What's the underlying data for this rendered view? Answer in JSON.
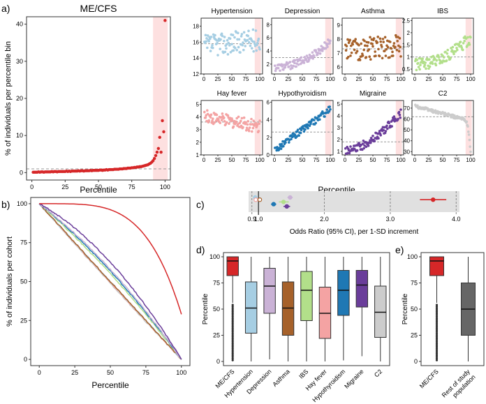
{
  "panel_labels": {
    "a": "a)",
    "b": "b)",
    "c": "c)",
    "d": "d)",
    "e": "e)"
  },
  "colors": {
    "mecfs": "#d62728",
    "hypertension": "#a6cee3",
    "depression": "#cab2d6",
    "asthma": "#a6612a",
    "ibs": "#b2df8a",
    "hayfever": "#f4a3a3",
    "hypothyroidism": "#1f78b4",
    "migraine": "#6a3d9a",
    "c2": "#cccccc",
    "rest": "#666666",
    "highlight": "#fde0e0",
    "band": "#e0e0e0"
  },
  "chart_data": [
    {
      "id": "a-main",
      "type": "scatter",
      "title": "ME/CFS",
      "xlabel": "Percentile",
      "ylabel": "% of individuals per percentile bin",
      "xlim": [
        0,
        100
      ],
      "ylim": [
        -2,
        42
      ],
      "xticks": [
        0,
        25,
        50,
        75,
        100
      ],
      "yticks": [
        0,
        10,
        20,
        30,
        40
      ],
      "baseline": 1,
      "highlight_range": [
        91,
        100
      ],
      "series": [
        {
          "name": "ME/CFS",
          "color_key": "mecfs",
          "x": [
            1,
            2,
            3,
            4,
            5,
            6,
            7,
            8,
            9,
            10,
            11,
            12,
            13,
            14,
            15,
            16,
            17,
            18,
            19,
            20,
            21,
            22,
            23,
            24,
            25,
            26,
            27,
            28,
            29,
            30,
            31,
            32,
            33,
            34,
            35,
            36,
            37,
            38,
            39,
            40,
            41,
            42,
            43,
            44,
            45,
            46,
            47,
            48,
            49,
            50,
            51,
            52,
            53,
            54,
            55,
            56,
            57,
            58,
            59,
            60,
            61,
            62,
            63,
            64,
            65,
            66,
            67,
            68,
            69,
            70,
            71,
            72,
            73,
            74,
            75,
            76,
            77,
            78,
            79,
            80,
            81,
            82,
            83,
            84,
            85,
            86,
            87,
            88,
            89,
            90,
            91,
            92,
            93,
            94,
            95,
            96,
            97,
            98,
            99,
            100
          ],
          "y": [
            0.1,
            0.1,
            0.1,
            0.1,
            0.2,
            0.1,
            0.2,
            0.2,
            0.1,
            0.2,
            0.2,
            0.2,
            0.2,
            0.2,
            0.3,
            0.2,
            0.3,
            0.3,
            0.2,
            0.3,
            0.3,
            0.3,
            0.3,
            0.3,
            0.3,
            0.4,
            0.3,
            0.4,
            0.3,
            0.4,
            0.4,
            0.4,
            0.4,
            0.4,
            0.5,
            0.4,
            0.5,
            0.5,
            0.4,
            0.5,
            0.5,
            0.5,
            0.5,
            0.6,
            0.5,
            0.6,
            0.6,
            0.6,
            0.6,
            0.6,
            0.7,
            0.7,
            0.6,
            0.7,
            0.7,
            0.8,
            0.7,
            0.8,
            0.8,
            0.8,
            0.8,
            0.9,
            0.9,
            0.9,
            0.9,
            1.0,
            1.0,
            1.0,
            1.1,
            1.1,
            1.1,
            1.2,
            1.2,
            1.2,
            1.3,
            1.3,
            1.4,
            1.4,
            1.5,
            1.5,
            1.6,
            1.6,
            1.7,
            1.8,
            1.9,
            2.0,
            2.1,
            2.3,
            2.5,
            2.8,
            3.2,
            3.8,
            4.6,
            5.5,
            6.5,
            9.5,
            5.5,
            14.0,
            11.0,
            41.0
          ]
        }
      ]
    },
    {
      "id": "a-hypertension",
      "type": "scatter",
      "title": "Hypertension",
      "xlabel": "",
      "ylabel": "",
      "xlim": [
        0,
        100
      ],
      "ylim": [
        12,
        19
      ],
      "yticks": [
        12,
        14,
        16,
        18
      ],
      "xticks": [
        0,
        25,
        50,
        75,
        100
      ],
      "baseline": 15.8,
      "highlight_range": [
        91,
        100
      ],
      "trend": {
        "start": 15.5,
        "end": 16.3,
        "noise": 1.4
      },
      "color_key": "hypertension"
    },
    {
      "id": "a-depression",
      "type": "scatter",
      "title": "Depression",
      "xlabel": "",
      "ylabel": "",
      "xlim": [
        0,
        100
      ],
      "ylim": [
        0.5,
        9
      ],
      "yticks": [
        2,
        4,
        6,
        8
      ],
      "xticks": [
        0,
        25,
        50,
        75,
        100
      ],
      "baseline": 3,
      "highlight_range": [
        91,
        100
      ],
      "trend": {
        "start": 1.5,
        "end": 5.5,
        "noise": 0.6,
        "power": 2
      },
      "color_key": "depression"
    },
    {
      "id": "a-asthma",
      "type": "scatter",
      "title": "Asthma",
      "xlabel": "",
      "ylabel": "",
      "xlim": [
        0,
        100
      ],
      "ylim": [
        5.5,
        9.5
      ],
      "yticks": [
        6,
        7,
        8,
        9
      ],
      "xticks": [
        0,
        25,
        50,
        75,
        100
      ],
      "baseline": 7.3,
      "highlight_range": [
        91,
        100
      ],
      "trend": {
        "start": 7.2,
        "end": 7.5,
        "noise": 0.8
      },
      "color_key": "asthma"
    },
    {
      "id": "a-ibs",
      "type": "scatter",
      "title": "IBS",
      "xlabel": "",
      "ylabel": "",
      "xlim": [
        0,
        100
      ],
      "ylim": [
        0.3,
        2.6
      ],
      "yticks": [
        0.5,
        1.0,
        1.5,
        2.0,
        2.5
      ],
      "xticks": [
        0,
        25,
        50,
        75,
        100
      ],
      "baseline": 1.0,
      "highlight_range": [
        91,
        100
      ],
      "trend": {
        "start": 0.7,
        "end": 1.8,
        "noise": 0.25,
        "power": 2
      },
      "color_key": "ibs"
    },
    {
      "id": "a-hayfever",
      "type": "scatter",
      "title": "Hay fever",
      "xlabel": "",
      "ylabel": "",
      "xlim": [
        0,
        100
      ],
      "ylim": [
        1,
        5.3
      ],
      "yticks": [
        1,
        2,
        3,
        4,
        5
      ],
      "xticks": [
        0,
        25,
        50,
        75,
        100
      ],
      "baseline": 3.6,
      "highlight_range": [
        91,
        100
      ],
      "trend": {
        "start": 4.1,
        "end": 3.2,
        "noise": 0.5
      },
      "color_key": "hayfever"
    },
    {
      "id": "a-hypothyroidism",
      "type": "scatter",
      "title": "Hypothyroidism",
      "xlabel": "",
      "ylabel": "",
      "xlim": [
        0,
        100
      ],
      "ylim": [
        0,
        6.2
      ],
      "yticks": [
        0,
        2,
        4,
        6
      ],
      "xticks": [
        0,
        25,
        50,
        75,
        100
      ],
      "baseline": 2.6,
      "highlight_range": [
        91,
        100
      ],
      "trend": {
        "start": 0.5,
        "end": 5.2,
        "noise": 0.4
      },
      "color_key": "hypothyroidism"
    },
    {
      "id": "a-migraine",
      "type": "scatter",
      "title": "Migraine",
      "xlabel": "",
      "ylabel": "",
      "xlim": [
        0,
        100
      ],
      "ylim": [
        0.7,
        5.3
      ],
      "yticks": [
        1,
        2,
        3,
        4,
        5
      ],
      "xticks": [
        0,
        25,
        50,
        75,
        100
      ],
      "baseline": 1.8,
      "highlight_range": [
        91,
        100
      ],
      "trend": {
        "start": 1.0,
        "end": 4.2,
        "noise": 0.35,
        "power": 1.6
      },
      "color_key": "migraine"
    },
    {
      "id": "a-c2",
      "type": "scatter",
      "title": "C2",
      "xlabel": "",
      "ylabel": "",
      "xlim": [
        0,
        100
      ],
      "ylim": [
        27,
        77
      ],
      "yticks": [
        30,
        40,
        50,
        60,
        70
      ],
      "xticks": [
        0,
        25,
        50,
        75,
        100
      ],
      "baseline": 62,
      "highlight_range": [
        91,
        100
      ],
      "trend": {
        "start": 72,
        "end": 58,
        "noise": 1.5,
        "drop": 28
      },
      "color_key": "c2"
    },
    {
      "id": "b-curves",
      "type": "line",
      "xlabel": "Percentile",
      "ylabel": "% of individuals per cohort",
      "xlim": [
        0,
        100
      ],
      "ylim": [
        0,
        100
      ],
      "xticks": [
        0,
        25,
        50,
        75,
        100
      ],
      "yticks": [
        0,
        25,
        50,
        75,
        100
      ],
      "series": [
        {
          "name": "C2",
          "color_key": "c2",
          "curve": 0.95
        },
        {
          "name": "Hay fever",
          "color_key": "hayfever",
          "curve": 0.98
        },
        {
          "name": "Hypertension",
          "color_key": "hypertension",
          "curve": 1.0
        },
        {
          "name": "Asthma",
          "color_key": "asthma",
          "curve": 1.0
        },
        {
          "name": "IBS",
          "color_key": "ibs",
          "curve": 1.22
        },
        {
          "name": "Hypothyroidism",
          "color_key": "hypothyroidism",
          "curve": 1.3
        },
        {
          "name": "Depression",
          "color_key": "depression",
          "curve": 1.35
        },
        {
          "name": "Migraine",
          "color_key": "migraine",
          "curve": 1.55
        },
        {
          "name": "ME/CFS",
          "color_key": "mecfs",
          "curve": 4.2,
          "end": 29
        }
      ]
    },
    {
      "id": "c-odds",
      "type": "scatter",
      "xlabel": "Odds Ratio (95% CI), per 1-SD increment",
      "xlim": [
        0.9,
        4.0
      ],
      "xticks": [
        0.9,
        1.0,
        2.0,
        3.0,
        4.0
      ],
      "xtick_labels": [
        "0.9",
        "1.0",
        "2.0",
        "3.0",
        "4.0"
      ],
      "reference": 1.0,
      "points": [
        {
          "name": "Hypertension",
          "color_key": "hypertension",
          "or": 0.95,
          "lo": 0.92,
          "hi": 0.98,
          "row": 0
        },
        {
          "name": "Hay fever",
          "color_key": "hayfever",
          "or": 0.96,
          "lo": 0.93,
          "hi": 1.0,
          "row": 1
        },
        {
          "name": "Asthma",
          "color_key": "asthma",
          "or": 1.02,
          "lo": 0.99,
          "hi": 1.05,
          "row": 1
        },
        {
          "name": "Depression",
          "color_key": "depression",
          "or": 1.48,
          "lo": 1.44,
          "hi": 1.52,
          "row": 0
        },
        {
          "name": "IBS",
          "color_key": "ibs",
          "or": 1.38,
          "lo": 1.31,
          "hi": 1.46,
          "row": 2
        },
        {
          "name": "Hypothyroidism",
          "color_key": "hypothyroidism",
          "or": 1.23,
          "lo": 1.19,
          "hi": 1.27,
          "row": 3
        },
        {
          "name": "Migraine",
          "color_key": "migraine",
          "or": 1.43,
          "lo": 1.38,
          "hi": 1.48,
          "row": 4
        },
        {
          "name": "ME/CFS",
          "color_key": "mecfs",
          "or": 3.65,
          "lo": 3.45,
          "hi": 3.85,
          "row": 1
        }
      ]
    },
    {
      "id": "d-box",
      "type": "box",
      "ylabel": "Percentile",
      "ylim": [
        0,
        100
      ],
      "yticks": [
        0,
        25,
        50,
        75,
        100
      ],
      "boxes": [
        {
          "name": "ME/CFS",
          "color_key": "mecfs",
          "q1": 82,
          "median": 96,
          "q3": 100,
          "lo": 56,
          "hi": 100,
          "outliers": "dense-low"
        },
        {
          "name": "Hypertension",
          "color_key": "hypertension",
          "q1": 27,
          "median": 51,
          "q3": 76,
          "lo": 0,
          "hi": 100
        },
        {
          "name": "Depression",
          "color_key": "depression",
          "q1": 46,
          "median": 72,
          "q3": 89,
          "lo": 2,
          "hi": 100
        },
        {
          "name": "Asthma",
          "color_key": "asthma",
          "q1": 25,
          "median": 51,
          "q3": 76,
          "lo": 0,
          "hi": 100
        },
        {
          "name": "IBS",
          "color_key": "ibs",
          "q1": 39,
          "median": 68,
          "q3": 86,
          "lo": 0,
          "hi": 100
        },
        {
          "name": "Hay fever",
          "color_key": "hayfever",
          "q1": 22,
          "median": 46,
          "q3": 71,
          "lo": 0,
          "hi": 100
        },
        {
          "name": "Hypothyroidism",
          "color_key": "hypothyroidism",
          "q1": 44,
          "median": 68,
          "q3": 87,
          "lo": 1,
          "hi": 100
        },
        {
          "name": "Migraine",
          "color_key": "migraine",
          "q1": 52,
          "median": 73,
          "q3": 87,
          "lo": 5,
          "hi": 100
        },
        {
          "name": "C2",
          "color_key": "c2",
          "q1": 23,
          "median": 47,
          "q3": 72,
          "lo": 0,
          "hi": 100
        }
      ]
    },
    {
      "id": "e-box",
      "type": "box",
      "ylabel": "Percentile",
      "ylim": [
        0,
        100
      ],
      "yticks": [
        0,
        25,
        50,
        75,
        100
      ],
      "boxes": [
        {
          "name": "ME/CFS",
          "color_key": "mecfs",
          "q1": 82,
          "median": 96,
          "q3": 100,
          "lo": 56,
          "hi": 100,
          "outliers": "dense-low"
        },
        {
          "name": "Rest of study population",
          "label_lines": [
            "Rest of study",
            "population"
          ],
          "color_key": "rest",
          "q1": 25,
          "median": 50,
          "q3": 75,
          "lo": 0,
          "hi": 100
        }
      ]
    }
  ],
  "a_xlabel": "Percentile"
}
